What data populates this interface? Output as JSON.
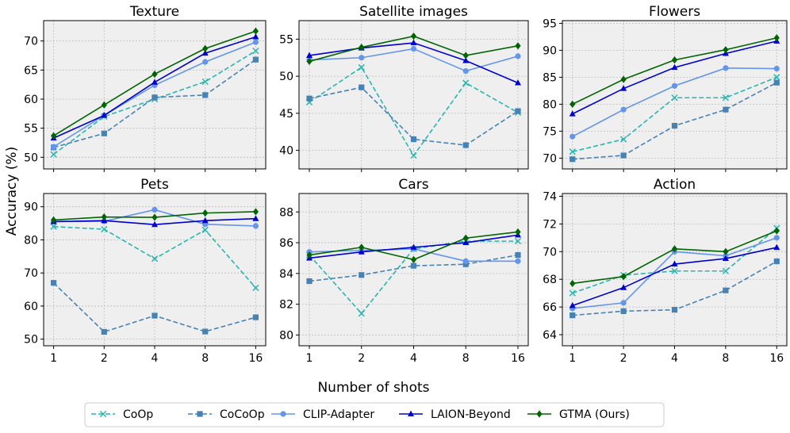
{
  "figure": {
    "ylabel": "Accuracy (%)",
    "xlabel": "Number of shots"
  },
  "legend": {
    "items": [
      {
        "label": "CoOp",
        "color": "#2bb5b0",
        "dash": "dashed",
        "marker": "x"
      },
      {
        "label": "CoCoOp",
        "color": "#4682b4",
        "dash": "dashed",
        "marker": "square"
      },
      {
        "label": "CLIP-Adapter",
        "color": "#6495ed",
        "dash": "solid",
        "marker": "circle"
      },
      {
        "label": "LAION-Beyond",
        "color": "#0000cd",
        "dash": "solid",
        "marker": "triangle"
      },
      {
        "label": "GTMA (Ours)",
        "color": "#006400",
        "dash": "solid",
        "marker": "diamond"
      }
    ]
  },
  "chart_data": [
    {
      "type": "line",
      "title": "Texture",
      "x": [
        "1",
        "2",
        "4",
        "8",
        "16"
      ],
      "ylim": [
        48,
        73.5
      ],
      "yticks": [
        50,
        55,
        60,
        65,
        70
      ],
      "series": [
        {
          "name": "CoOp",
          "values": [
            50.5,
            57.0,
            60.0,
            63.0,
            68.3
          ]
        },
        {
          "name": "CoCoOp",
          "values": [
            51.7,
            54.1,
            60.3,
            60.7,
            66.8
          ]
        },
        {
          "name": "CLIP-Adapter",
          "values": [
            51.8,
            57.2,
            62.4,
            66.4,
            69.8
          ]
        },
        {
          "name": "LAION-Beyond",
          "values": [
            53.3,
            57.2,
            62.9,
            67.9,
            70.7
          ]
        },
        {
          "name": "GTMA (Ours)",
          "values": [
            53.7,
            59.0,
            64.3,
            68.7,
            71.7
          ]
        }
      ]
    },
    {
      "type": "line",
      "title": "Satellite images",
      "x": [
        "1",
        "2",
        "4",
        "8",
        "16"
      ],
      "ylim": [
        37.5,
        57.5
      ],
      "yticks": [
        40,
        45,
        50,
        55
      ],
      "series": [
        {
          "name": "CoOp",
          "values": [
            46.5,
            51.2,
            39.3,
            49.1,
            45.1
          ]
        },
        {
          "name": "CoCoOp",
          "values": [
            47.0,
            48.5,
            41.5,
            40.7,
            45.3
          ]
        },
        {
          "name": "CLIP-Adapter",
          "values": [
            52.2,
            52.5,
            53.7,
            50.7,
            52.7
          ]
        },
        {
          "name": "LAION-Beyond",
          "values": [
            52.8,
            53.8,
            54.5,
            52.1,
            49.1
          ]
        },
        {
          "name": "GTMA (Ours)",
          "values": [
            52.0,
            53.9,
            55.4,
            52.8,
            54.1
          ]
        }
      ]
    },
    {
      "type": "line",
      "title": "Flowers",
      "x": [
        "1",
        "2",
        "4",
        "8",
        "16"
      ],
      "ylim": [
        68,
        95.5
      ],
      "yticks": [
        70,
        75,
        80,
        85,
        90,
        95
      ],
      "series": [
        {
          "name": "CoOp",
          "values": [
            71.2,
            73.5,
            81.2,
            81.2,
            85.0
          ]
        },
        {
          "name": "CoCoOp",
          "values": [
            69.8,
            70.5,
            76.0,
            79.0,
            84.0
          ]
        },
        {
          "name": "CLIP-Adapter",
          "values": [
            74.0,
            79.0,
            83.4,
            86.7,
            86.6
          ]
        },
        {
          "name": "LAION-Beyond",
          "values": [
            78.2,
            82.9,
            86.8,
            89.4,
            91.7
          ]
        },
        {
          "name": "GTMA (Ours)",
          "values": [
            80.0,
            84.6,
            88.2,
            90.1,
            92.3
          ]
        }
      ]
    },
    {
      "type": "line",
      "title": "Pets",
      "x": [
        "1",
        "2",
        "4",
        "8",
        "16"
      ],
      "ylim": [
        48,
        94
      ],
      "yticks": [
        50,
        60,
        70,
        80,
        90
      ],
      "series": [
        {
          "name": "CoOp",
          "values": [
            84.0,
            83.2,
            74.3,
            83.0,
            65.5
          ]
        },
        {
          "name": "CoCoOp",
          "values": [
            67.0,
            52.2,
            57.1,
            52.3,
            56.6
          ]
        },
        {
          "name": "CLIP-Adapter",
          "values": [
            85.5,
            85.6,
            89.1,
            84.7,
            84.2
          ]
        },
        {
          "name": "LAION-Beyond",
          "values": [
            85.5,
            85.8,
            84.6,
            85.8,
            86.4
          ]
        },
        {
          "name": "GTMA (Ours)",
          "values": [
            86.0,
            86.9,
            86.8,
            88.1,
            88.5
          ]
        }
      ]
    },
    {
      "type": "line",
      "title": "Cars",
      "x": [
        "1",
        "2",
        "4",
        "8",
        "16"
      ],
      "ylim": [
        79.3,
        89.2
      ],
      "yticks": [
        80,
        82,
        84,
        86,
        88
      ],
      "series": [
        {
          "name": "CoOp",
          "values": [
            85.2,
            81.4,
            85.6,
            86.1,
            86.1
          ]
        },
        {
          "name": "CoCoOp",
          "values": [
            83.5,
            83.9,
            84.5,
            84.6,
            85.2
          ]
        },
        {
          "name": "CLIP-Adapter",
          "values": [
            85.4,
            85.5,
            85.6,
            84.8,
            84.8
          ]
        },
        {
          "name": "LAION-Beyond",
          "values": [
            85.0,
            85.4,
            85.7,
            86.0,
            86.5
          ]
        },
        {
          "name": "GTMA (Ours)",
          "values": [
            85.2,
            85.7,
            84.9,
            86.3,
            86.7
          ]
        }
      ]
    },
    {
      "type": "line",
      "title": "Action",
      "x": [
        "1",
        "2",
        "4",
        "8",
        "16"
      ],
      "ylim": [
        63.2,
        74.2
      ],
      "yticks": [
        64,
        66,
        68,
        70,
        72,
        74
      ],
      "series": [
        {
          "name": "CoOp",
          "values": [
            67.0,
            68.3,
            68.6,
            68.6,
            71.7
          ]
        },
        {
          "name": "CoCoOp",
          "values": [
            65.4,
            65.7,
            65.8,
            67.2,
            69.3
          ]
        },
        {
          "name": "CLIP-Adapter",
          "values": [
            65.9,
            66.3,
            70.0,
            69.7,
            71.0
          ]
        },
        {
          "name": "LAION-Beyond",
          "values": [
            66.1,
            67.4,
            69.1,
            69.5,
            70.3
          ]
        },
        {
          "name": "GTMA (Ours)",
          "values": [
            67.7,
            68.2,
            70.2,
            70.0,
            71.5
          ]
        }
      ]
    }
  ]
}
